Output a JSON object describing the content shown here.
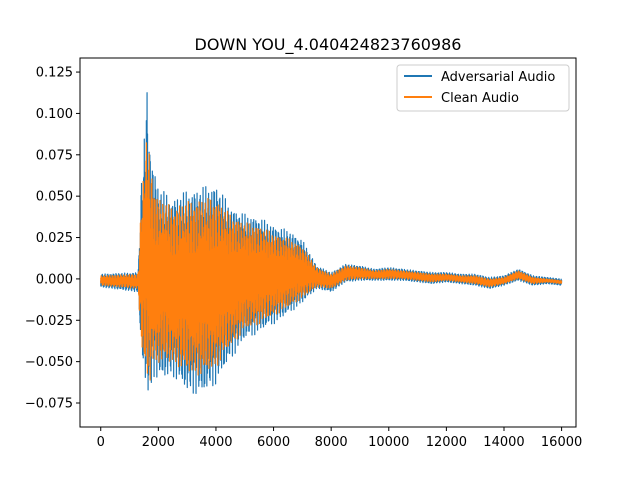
{
  "chart_data": {
    "type": "line",
    "title": "DOWN YOU_4.040424823760986",
    "xlabel": "",
    "ylabel": "",
    "xlim": [
      -720,
      16500
    ],
    "ylim": [
      -0.0895,
      0.1335
    ],
    "x_ticks": [
      0,
      2000,
      4000,
      6000,
      8000,
      10000,
      12000,
      14000,
      16000
    ],
    "x_tick_labels": [
      "0",
      "2000",
      "4000",
      "6000",
      "8000",
      "10000",
      "12000",
      "14000",
      "16000"
    ],
    "y_ticks": [
      -0.075,
      -0.05,
      -0.025,
      0.0,
      0.025,
      0.05,
      0.075,
      0.1,
      0.125
    ],
    "y_tick_labels": [
      "−0.075",
      "−0.050",
      "−0.025",
      "0.000",
      "0.025",
      "0.050",
      "0.075",
      "0.100",
      "0.125"
    ],
    "grid": false,
    "legend_position": "upper right",
    "series": [
      {
        "name": "Adversarial Audio",
        "color": "#1f77b4",
        "envelope_x": [
          0,
          1300,
          1400,
          1500,
          1600,
          1700,
          1800,
          2000,
          2500,
          3000,
          3500,
          4000,
          4500,
          5000,
          5500,
          6000,
          6500,
          7000,
          7500,
          8000,
          8500,
          9000,
          9500,
          10000,
          10500,
          11000,
          11500,
          12000,
          12500,
          13000,
          13500,
          14000,
          14500,
          15000,
          15500,
          16000
        ],
        "envelope_upper": [
          0.003,
          0.004,
          0.058,
          0.082,
          0.12,
          0.087,
          0.072,
          0.057,
          0.05,
          0.055,
          0.057,
          0.059,
          0.045,
          0.04,
          0.038,
          0.033,
          0.03,
          0.024,
          0.008,
          0.004,
          0.009,
          0.008,
          0.006,
          0.007,
          0.006,
          0.005,
          0.004,
          0.004,
          0.003,
          0.003,
          0.001,
          0.002,
          0.006,
          0.002,
          0.001,
          0.0
        ],
        "envelope_lower": [
          -0.005,
          -0.008,
          -0.045,
          -0.06,
          -0.068,
          -0.079,
          -0.06,
          -0.063,
          -0.06,
          -0.07,
          -0.072,
          -0.065,
          -0.05,
          -0.038,
          -0.033,
          -0.028,
          -0.022,
          -0.015,
          -0.006,
          -0.008,
          -0.002,
          -0.001,
          -0.001,
          -0.001,
          -0.001,
          -0.002,
          -0.003,
          -0.002,
          -0.003,
          -0.004,
          -0.006,
          -0.004,
          -0.001,
          -0.004,
          -0.003,
          -0.004
        ]
      },
      {
        "name": "Clean Audio",
        "color": "#ff7f0e",
        "envelope_x": [
          0,
          1300,
          1400,
          1500,
          1600,
          1700,
          1800,
          2000,
          2500,
          3000,
          3500,
          4000,
          4500,
          5000,
          5500,
          6000,
          6500,
          7000,
          7500,
          8000,
          8500,
          9000,
          9500,
          10000,
          10500,
          11000,
          11500,
          12000,
          12500,
          13000,
          13500,
          14000,
          14500,
          15000,
          15500,
          16000
        ],
        "envelope_upper": [
          0.002,
          0.003,
          0.045,
          0.07,
          0.09,
          0.075,
          0.062,
          0.05,
          0.045,
          0.048,
          0.05,
          0.05,
          0.04,
          0.035,
          0.033,
          0.028,
          0.025,
          0.02,
          0.007,
          0.003,
          0.008,
          0.007,
          0.005,
          0.006,
          0.005,
          0.004,
          0.003,
          0.003,
          0.002,
          0.002,
          0.0,
          0.001,
          0.005,
          0.001,
          0.0,
          -0.001
        ],
        "envelope_lower": [
          -0.004,
          -0.006,
          -0.04,
          -0.055,
          -0.062,
          -0.066,
          -0.052,
          -0.052,
          -0.052,
          -0.058,
          -0.06,
          -0.055,
          -0.042,
          -0.032,
          -0.028,
          -0.023,
          -0.018,
          -0.012,
          -0.005,
          -0.006,
          -0.001,
          0.0,
          0.0,
          0.0,
          0.0,
          -0.001,
          -0.002,
          -0.001,
          -0.002,
          -0.003,
          -0.005,
          -0.003,
          0.0,
          -0.003,
          -0.002,
          -0.003
        ]
      }
    ]
  }
}
